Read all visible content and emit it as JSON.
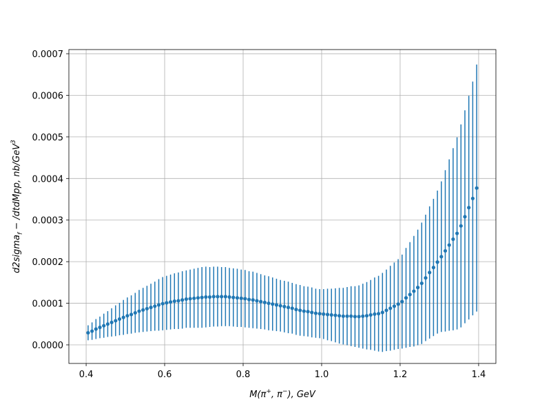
{
  "chart_data": {
    "type": "errorbar",
    "xlabel": [
      "M(π",
      "+",
      ", π",
      "−",
      "), GeV"
    ],
    "ylabel": [
      "d2sigma",
      "f",
      " − /dtdMpp, nb/GeV",
      "3"
    ],
    "color": "#1f77b4",
    "grid": true,
    "xlim": [
      0.356,
      1.444
    ],
    "ylim": [
      -4.47e-05,
      0.00071
    ],
    "xticks": [
      0.4,
      0.6,
      0.8,
      {
        "value": 1,
        "label": "1.0"
      },
      1.2,
      1.4
    ],
    "yticks": [
      {
        "value": 0,
        "label": "0.0000"
      },
      {
        "value": 0.0001,
        "label": "0.0001"
      },
      {
        "value": 0.0002,
        "label": "0.0002"
      },
      {
        "value": 0.0003,
        "label": "0.0003"
      },
      {
        "value": 0.0004,
        "label": "0.0004"
      },
      {
        "value": 0.0005,
        "label": "0.0005"
      },
      {
        "value": 0.0006,
        "label": "0.0006"
      },
      {
        "value": 0.0007,
        "label": "0.0007"
      }
    ],
    "x": [
      0.405,
      0.415,
      0.425,
      0.435,
      0.445,
      0.455,
      0.465,
      0.475,
      0.485,
      0.495,
      0.505,
      0.515,
      0.525,
      0.535,
      0.545,
      0.555,
      0.565,
      0.575,
      0.585,
      0.595,
      0.605,
      0.615,
      0.625,
      0.635,
      0.645,
      0.655,
      0.665,
      0.675,
      0.685,
      0.695,
      0.705,
      0.715,
      0.725,
      0.735,
      0.745,
      0.755,
      0.765,
      0.775,
      0.785,
      0.795,
      0.805,
      0.815,
      0.825,
      0.835,
      0.845,
      0.855,
      0.865,
      0.875,
      0.885,
      0.895,
      0.905,
      0.915,
      0.925,
      0.935,
      0.945,
      0.955,
      0.965,
      0.975,
      0.985,
      0.995,
      1.005,
      1.015,
      1.025,
      1.035,
      1.045,
      1.055,
      1.065,
      1.075,
      1.085,
      1.095,
      1.105,
      1.115,
      1.125,
      1.135,
      1.145,
      1.155,
      1.165,
      1.175,
      1.185,
      1.195,
      1.205,
      1.215,
      1.225,
      1.235,
      1.245,
      1.255,
      1.265,
      1.275,
      1.285,
      1.295,
      1.305,
      1.315,
      1.325,
      1.335,
      1.345,
      1.355,
      1.365,
      1.375,
      1.385,
      1.395
    ],
    "values": [
      2.9e-05,
      3.3e-05,
      3.8e-05,
      4.2e-05,
      4.6e-05,
      5e-05,
      5.4e-05,
      5.8e-05,
      6.2e-05,
      6.6e-05,
      7e-05,
      7.3e-05,
      7.7e-05,
      8.1e-05,
      8.4e-05,
      8.7e-05,
      9e-05,
      9.3e-05,
      9.6e-05,
      9.9e-05,
      0.000101,
      0.000103,
      0.000105,
      0.000106,
      0.000108,
      0.00011,
      0.000111,
      0.000112,
      0.000113,
      0.000114,
      0.000115,
      0.000115,
      0.000116,
      0.000116,
      0.000116,
      0.000116,
      0.000115,
      0.000114,
      0.000113,
      0.000112,
      0.000111,
      0.000109,
      0.000108,
      0.000106,
      0.000104,
      0.000102,
      0.0001,
      9.8e-05,
      9.6e-05,
      9.4e-05,
      9.2e-05,
      9e-05,
      8.8e-05,
      8.5e-05,
      8.3e-05,
      8.1e-05,
      8e-05,
      7.8e-05,
      7.6e-05,
      7.5e-05,
      7.4e-05,
      7.3e-05,
      7.2e-05,
      7.1e-05,
      7e-05,
      6.9e-05,
      6.9e-05,
      6.9e-05,
      6.8e-05,
      6.8e-05,
      6.9e-05,
      7e-05,
      7.2e-05,
      7.4e-05,
      7.5e-05,
      7.8e-05,
      8.3e-05,
      8.8e-05,
      9.3e-05,
      9.8e-05,
      0.000104,
      0.000113,
      0.000121,
      0.000129,
      0.000138,
      0.000148,
      0.000161,
      0.000174,
      0.000186,
      0.000199,
      0.000212,
      0.000226,
      0.00024,
      0.000254,
      0.000268,
      0.000286,
      0.000308,
      0.00033,
      0.000352,
      0.000377
    ],
    "errors": [
      1.8e-05,
      2.1e-05,
      2.4e-05,
      2.6e-05,
      2.9e-05,
      3.1e-05,
      3.4e-05,
      3.7e-05,
      3.9e-05,
      4.2e-05,
      4.4e-05,
      4.6e-05,
      4.8e-05,
      5.1e-05,
      5.3e-05,
      5.5e-05,
      5.7e-05,
      5.9e-05,
      6.2e-05,
      6.4e-05,
      6.5e-05,
      6.6e-05,
      6.7e-05,
      6.8e-05,
      6.9e-05,
      6.9e-05,
      7e-05,
      7.1e-05,
      7.2e-05,
      7.3e-05,
      7.3e-05,
      7.2e-05,
      7.2e-05,
      7.2e-05,
      7.1e-05,
      7.1e-05,
      7e-05,
      7e-05,
      7e-05,
      6.9e-05,
      6.9e-05,
      6.8e-05,
      6.8e-05,
      6.7e-05,
      6.6e-05,
      6.5e-05,
      6.5e-05,
      6.4e-05,
      6.3e-05,
      6.2e-05,
      6.2e-05,
      6.2e-05,
      6.1e-05,
      6.1e-05,
      6.1e-05,
      6e-05,
      6e-05,
      6e-05,
      5.9e-05,
      5.9e-05,
      6e-05,
      6.2e-05,
      6.3e-05,
      6.5e-05,
      6.7e-05,
      6.8e-05,
      7e-05,
      7.2e-05,
      7.3e-05,
      7.5e-05,
      7.8e-05,
      8.1e-05,
      8.4e-05,
      8.8e-05,
      9.1e-05,
      9.5e-05,
      9.8e-05,
      0.000102,
      0.000105,
      0.000108,
      0.000113,
      0.00012,
      0.000126,
      0.000133,
      0.000139,
      0.000146,
      0.000152,
      0.000159,
      0.000165,
      0.000172,
      0.000181,
      0.000194,
      0.000206,
      0.000219,
      0.000231,
      0.000244,
      0.000256,
      0.000269,
      0.000281,
      0.000297
    ]
  }
}
